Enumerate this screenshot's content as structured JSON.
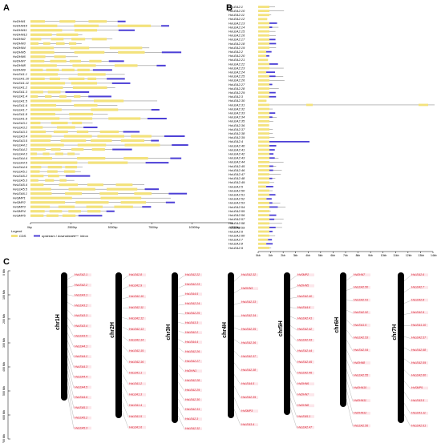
{
  "panels": {
    "a": "A",
    "b": "B",
    "c": "C"
  },
  "colors": {
    "cds": "#f3e27c",
    "utr": "#4c3fd6",
    "intron": "#555555",
    "chrom": "#000000",
    "genelabel": "#d81b2a",
    "labelbg": "#fce6ea"
  },
  "panelA": {
    "genes": [
      "HvDHN1",
      "HvDHN10",
      "HvDHN11",
      "HvDHN12",
      "HvDHN2",
      "HvDHN3",
      "HvDHN4",
      "HvDHN5",
      "HvDHN6",
      "HvDHN7",
      "HvDHN8",
      "HvDHN9",
      "HvLEA1.1",
      "HvLEA1.10",
      "HvLEA1.11",
      "HvLEA1.2",
      "HvLEA1.3",
      "HvLEA1.4",
      "HvLEA1.5",
      "HvLEA1.6",
      "HvLEA1.7",
      "HvLEA1.8",
      "HvLEA1.9",
      "HvLEA3.1",
      "HvLEA3.2",
      "HvLEA3.3",
      "HvLEA3.4",
      "HvLEA3.5",
      "HvLEA4.1",
      "HvLEA4.2",
      "HvLEA4.3",
      "HvLEA4.4",
      "HvLEA4.5",
      "HvLEA4.6",
      "HvLEA5.1",
      "HvLEA5.2",
      "HvLEA5.3",
      "HvLEA5.4",
      "HvLEA5.5",
      "HvLEA6.1",
      "HvSMP1",
      "HvSMP2",
      "HvSMP3",
      "HvSMP4",
      "HvSMP5"
    ],
    "axis_ticks": [
      "0bp",
      "2500bp",
      "5000bp",
      "7500bp",
      "10000bp",
      "12500bp"
    ],
    "legend_title": "Legend",
    "legend_items": [
      "CDS",
      "upstream / downstream",
      "intron"
    ]
  },
  "panelB": {
    "genes": [
      "HvLEA2.1",
      "HvLEA2.10",
      "HvLEA2.11",
      "HvLEA2.12",
      "HvLEA2.13",
      "HvLEA2.14",
      "HvLEA2.15",
      "HvLEA2.16",
      "HvLEA2.17",
      "HvLEA2.18",
      "HvLEA2.19",
      "HvLEA2.2",
      "HvLEA2.20",
      "HvLEA2.21",
      "HvLEA2.22",
      "HvLEA2.23",
      "HvLEA2.24",
      "HvLEA2.25",
      "HvLEA2.26",
      "HvLEA2.27",
      "HvLEA2.28",
      "HvLEA2.29",
      "HvLEA2.3",
      "HvLEA2.30",
      "HvLEA2.31",
      "HvLEA2.32",
      "HvLEA2.33",
      "HvLEA2.34",
      "HvLEA2.35",
      "HvLEA2.36",
      "HvLEA2.37",
      "HvLEA2.38",
      "HvLEA2.39",
      "HvLEA2.4",
      "HvLEA2.40",
      "HvLEA2.41",
      "HvLEA2.42",
      "HvLEA2.43",
      "HvLEA2.44",
      "HvLEA2.45",
      "HvLEA2.46",
      "HvLEA2.47",
      "HvLEA2.48",
      "HvLEA2.49",
      "HvLEA2.5",
      "HvLEA2.50",
      "HvLEA2.51",
      "HvLEA2.52",
      "HvLEA2.53",
      "HvLEA2.54",
      "HvLEA2.55",
      "HvLEA2.56",
      "HvLEA2.57",
      "HvLEA2.58",
      "HvLEA2.59",
      "HvLEA2.6",
      "HvLEA2.60",
      "HvLEA2.7",
      "HvLEA2.8",
      "HvLEA2.9"
    ],
    "axis_ticks": [
      "0kb",
      "1kb",
      "2kb",
      "3kb",
      "4kb",
      "5kb",
      "6kb",
      "7kb",
      "8kb",
      "9kb",
      "10kb",
      "11kb",
      "12kb",
      "13kb",
      "14kb"
    ]
  },
  "panelC": {
    "scale_ticks": [
      "0 Mb",
      "100 Mb",
      "200 Mb",
      "300 Mb",
      "400 Mb",
      "500 Mb",
      "600 Mb",
      "700 Mb"
    ],
    "chromosomes": [
      {
        "name": "chr1H",
        "genes": [
          "HvLEA2.1",
          "HvLEA2.2",
          "HvLEA3.1",
          "HvLEA3.2",
          "HvLEA3.3",
          "HvLEA3.4",
          "HvLEA3.5",
          "HvLEA4.1",
          "HvLEA4.2",
          "HvLEA4.3",
          "HvLEA4.4",
          "HvLEA4.5",
          "HvLEA4.6",
          "HvLEA5.1",
          "HvLEA5.2",
          "HvLEA5.3"
        ]
      },
      {
        "name": "chr2H",
        "genes": [
          "HvLEA2.8",
          "HvLEA2.9",
          "HvLEA2.10",
          "HvLEA2.11",
          "HvLEA2.12",
          "HvLEA2.13",
          "HvLEA2.14",
          "HvLEA2.15",
          "HvLEA2.16",
          "HvLEA1.1",
          "HvLEA1.2",
          "HvLEA1.3",
          "HvLEA1.4",
          "HvLEA1.5",
          "HvLEA1.6"
        ]
      },
      {
        "name": "chr3H",
        "genes": [
          "HvLEA2.22",
          "HvLEA2.23",
          "HvLEA4.5",
          "HvLEA2.24",
          "HvLEA2.25",
          "HvLEA3.3",
          "HvLEA2.2",
          "HvLEA4.4",
          "HvLEA2.26",
          "HvLEA2.27",
          "HvDHN1",
          "HvLEA2.28",
          "HvLEA2.29",
          "HvLEA2.30",
          "HvLEA2.31",
          "HvLEA2.3",
          "HvLEA2.32"
        ]
      },
      {
        "name": "chr4H",
        "genes": [
          "HvLEA2.32",
          "HvDHN3",
          "HvLEA2.33",
          "HvLEA2.34",
          "HvLEA2.35",
          "HvLEA2.36",
          "HvLEA2.37",
          "HvLEA2.38",
          "HvLEA4.5",
          "HvLEA2.39",
          "HvSMP3",
          "HvLEA3.4"
        ]
      },
      {
        "name": "chr5H",
        "genes": [
          "HvSMP2",
          "HvDHN5",
          "HvLEA2.40",
          "HvLEA4.6",
          "HvLEA2.41",
          "HvLEA2.42",
          "HvLEA2.43",
          "HvLEA2.44",
          "HvLEA2.45",
          "HvLEA2.46",
          "HvDHN6",
          "HvDHN7",
          "HvDHN8",
          "HvLEA5.1",
          "HvLEA2.47"
        ]
      },
      {
        "name": "chr6H",
        "genes": [
          "HvDHN7",
          "HvLEA2.50",
          "HvLEA2.51",
          "HvLEA2.52",
          "HvLEA1.5",
          "HvLEA2.53",
          "HvLEA2.54",
          "HvDHN8",
          "HvLEA2.55",
          "HvDHN10",
          "HvDHN11",
          "HvDHN12",
          "HvLEA2.56"
        ]
      },
      {
        "name": "chr7H",
        "genes": [
          "HvLEA2.6",
          "HvLEA2.7",
          "HvLEA2.8",
          "HvLEA2.9",
          "HvLEA1.10",
          "HvLEA2.57",
          "HvLEA2.58",
          "HvLEA2.59",
          "HvLEA2.60",
          "HvSMP5",
          "HvLEA3.5",
          "HvLEA1.11",
          "HvLEA2.61"
        ]
      }
    ]
  }
}
